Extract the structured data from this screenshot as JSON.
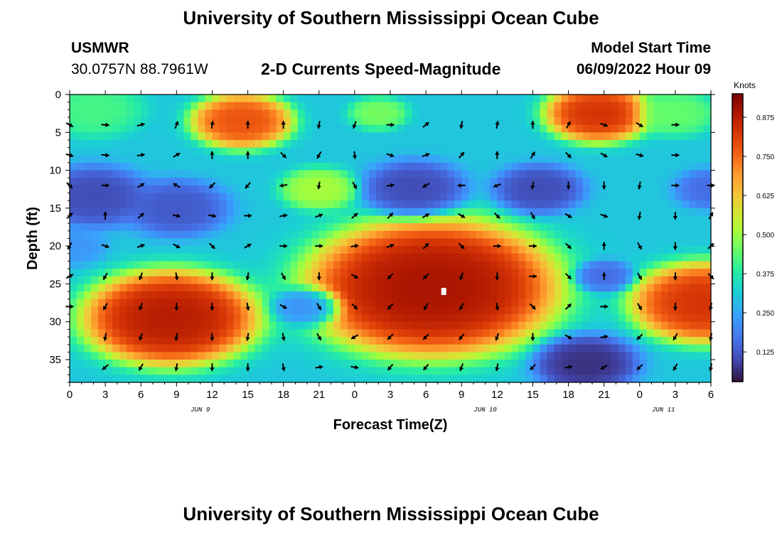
{
  "page": {
    "title_top": "University of Southern Mississippi Ocean Cube",
    "title_bottom": "University of Southern Mississippi Ocean Cube",
    "station": "USMWR",
    "coordinates": "30.0757N  88.7961W",
    "subtitle": "2-D Currents Speed-Magnitude",
    "model_start_label": "Model Start Time",
    "model_start_value": "06/09/2022 Hour 09"
  },
  "colors": {
    "background": "#ffffff",
    "axis": "#000000",
    "arrow": "#000000"
  },
  "chart_data": {
    "type": "heatmap",
    "title": "2-D Currents Speed-Magnitude",
    "xlabel": "Forecast Time(Z)",
    "ylabel": "Depth (ft)",
    "x_ticks": [
      "0",
      "3",
      "6",
      "9",
      "12",
      "15",
      "18",
      "21",
      "0",
      "3",
      "6",
      "9",
      "12",
      "15",
      "18",
      "21",
      "0",
      "3",
      "6"
    ],
    "x_range_hours": [
      0,
      54
    ],
    "date_labels": [
      {
        "label": "JUN 9",
        "hour": 11
      },
      {
        "label": "JUN 10",
        "hour": 35
      },
      {
        "label": "JUN 11",
        "hour": 50
      }
    ],
    "y_ticks": [
      0,
      5,
      10,
      15,
      20,
      25,
      30,
      35
    ],
    "ylim": [
      0,
      38
    ],
    "y_inverted": true,
    "colorbar": {
      "label": "Knots",
      "ticks": [
        "0.875",
        "0.750",
        "0.625",
        "0.500",
        "0.375",
        "0.250",
        "0.125"
      ],
      "range": [
        0.03,
        0.95
      ],
      "colormap": "turbo"
    },
    "marker": {
      "hour": 31.5,
      "depth": 26
    },
    "centers": [
      {
        "h": 14.5,
        "d": 3.5,
        "s": 0.8,
        "r": 2.2
      },
      {
        "h": 44.5,
        "d": 2.5,
        "s": 0.85,
        "r": 2.3
      },
      {
        "h": 8.5,
        "d": 29.5,
        "s": 0.9,
        "r": 3.8
      },
      {
        "h": 30.5,
        "d": 25.5,
        "s": 0.92,
        "r": 5.5
      },
      {
        "h": 53.5,
        "d": 27.5,
        "s": 0.85,
        "r": 3.2
      },
      {
        "h": 21.0,
        "d": 12.5,
        "s": 0.52,
        "r": 1.7
      },
      {
        "h": 26.0,
        "d": 2.5,
        "s": 0.47,
        "r": 1.3
      },
      {
        "h": 51.0,
        "d": 2.5,
        "s": 0.45,
        "r": 1.8
      },
      {
        "h": 2.0,
        "d": 2.0,
        "s": 0.42,
        "r": 2.2
      },
      {
        "h": 2.0,
        "d": 13.5,
        "s": 0.1,
        "r": 2.5
      },
      {
        "h": 9.0,
        "d": 15.0,
        "s": 0.12,
        "r": 2.3
      },
      {
        "h": 29.0,
        "d": 12.5,
        "s": 0.1,
        "r": 2.3
      },
      {
        "h": 39.5,
        "d": 12.5,
        "s": 0.1,
        "r": 2.0
      },
      {
        "h": 43.5,
        "d": 35.5,
        "s": 0.06,
        "r": 2.3
      },
      {
        "h": 54.0,
        "d": 12.5,
        "s": 0.15,
        "r": 1.6
      },
      {
        "h": 45.0,
        "d": 24.0,
        "s": 0.15,
        "r": 1.3
      },
      {
        "h": 20.0,
        "d": 28.0,
        "s": 0.2,
        "r": 1.6
      },
      {
        "h": 0.0,
        "d": 20.0,
        "s": 0.22,
        "r": 1.6
      }
    ],
    "vectors": [
      {
        "h": 0,
        "d": 4,
        "a": -30
      },
      {
        "h": 3,
        "d": 4,
        "a": -5
      },
      {
        "h": 6,
        "d": 4,
        "a": 15
      },
      {
        "h": 9,
        "d": 4,
        "a": 70
      },
      {
        "h": 12,
        "d": 4,
        "a": 80
      },
      {
        "h": 15,
        "d": 4,
        "a": 90
      },
      {
        "h": 18,
        "d": 4,
        "a": 90
      },
      {
        "h": 21,
        "d": 4,
        "a": -100
      },
      {
        "h": 24,
        "d": 4,
        "a": -110
      },
      {
        "h": 27,
        "d": 4,
        "a": 0
      },
      {
        "h": 30,
        "d": 4,
        "a": 40
      },
      {
        "h": 33,
        "d": 4,
        "a": -100
      },
      {
        "h": 36,
        "d": 4,
        "a": 80
      },
      {
        "h": 39,
        "d": 4,
        "a": 90
      },
      {
        "h": 42,
        "d": 4,
        "a": 60
      },
      {
        "h": 45,
        "d": 4,
        "a": -20
      },
      {
        "h": 48,
        "d": 4,
        "a": -30
      },
      {
        "h": 51,
        "d": 4,
        "a": 0
      },
      {
        "h": 0,
        "d": 8,
        "a": -15
      },
      {
        "h": 3,
        "d": 8,
        "a": -5
      },
      {
        "h": 6,
        "d": 8,
        "a": 10
      },
      {
        "h": 9,
        "d": 8,
        "a": 30
      },
      {
        "h": 12,
        "d": 8,
        "a": 90
      },
      {
        "h": 15,
        "d": 8,
        "a": 90
      },
      {
        "h": 18,
        "d": 8,
        "a": -45
      },
      {
        "h": 21,
        "d": 8,
        "a": -120
      },
      {
        "h": 24,
        "d": 8,
        "a": -85
      },
      {
        "h": 27,
        "d": 8,
        "a": -20
      },
      {
        "h": 30,
        "d": 8,
        "a": 20
      },
      {
        "h": 33,
        "d": 8,
        "a": 50
      },
      {
        "h": 36,
        "d": 8,
        "a": 90
      },
      {
        "h": 39,
        "d": 8,
        "a": 60
      },
      {
        "h": 42,
        "d": 8,
        "a": -45
      },
      {
        "h": 45,
        "d": 8,
        "a": -30
      },
      {
        "h": 48,
        "d": 8,
        "a": -15
      },
      {
        "h": 51,
        "d": 8,
        "a": 0
      },
      {
        "h": 0,
        "d": 12,
        "a": -45
      },
      {
        "h": 3,
        "d": 12,
        "a": 0
      },
      {
        "h": 6,
        "d": 12,
        "a": 30
      },
      {
        "h": 9,
        "d": 12,
        "a": 150
      },
      {
        "h": 12,
        "d": 12,
        "a": -135
      },
      {
        "h": 15,
        "d": 12,
        "a": -130
      },
      {
        "h": 18,
        "d": 12,
        "a": -170
      },
      {
        "h": 21,
        "d": 12,
        "a": -100
      },
      {
        "h": 24,
        "d": 12,
        "a": -60
      },
      {
        "h": 27,
        "d": 12,
        "a": 10
      },
      {
        "h": 30,
        "d": 12,
        "a": -150
      },
      {
        "h": 33,
        "d": 12,
        "a": 180
      },
      {
        "h": 36,
        "d": 12,
        "a": -160
      },
      {
        "h": 39,
        "d": 12,
        "a": -100
      },
      {
        "h": 42,
        "d": 12,
        "a": -90
      },
      {
        "h": 45,
        "d": 12,
        "a": -90
      },
      {
        "h": 48,
        "d": 12,
        "a": -100
      },
      {
        "h": 51,
        "d": 12,
        "a": 0
      },
      {
        "h": 54,
        "d": 12,
        "a": 0
      },
      {
        "h": 0,
        "d": 16,
        "a": 45
      },
      {
        "h": 3,
        "d": 16,
        "a": 90
      },
      {
        "h": 6,
        "d": 16,
        "a": 40
      },
      {
        "h": 9,
        "d": 16,
        "a": -10
      },
      {
        "h": 12,
        "d": 16,
        "a": -10
      },
      {
        "h": 15,
        "d": 16,
        "a": 0
      },
      {
        "h": 18,
        "d": 16,
        "a": 10
      },
      {
        "h": 21,
        "d": 16,
        "a": 20
      },
      {
        "h": 24,
        "d": 16,
        "a": 40
      },
      {
        "h": 27,
        "d": 16,
        "a": 45
      },
      {
        "h": 30,
        "d": 16,
        "a": 30
      },
      {
        "h": 33,
        "d": 16,
        "a": -30
      },
      {
        "h": 36,
        "d": 16,
        "a": -45
      },
      {
        "h": 39,
        "d": 16,
        "a": -60
      },
      {
        "h": 42,
        "d": 16,
        "a": -30
      },
      {
        "h": 45,
        "d": 16,
        "a": -20
      },
      {
        "h": 48,
        "d": 16,
        "a": -100
      },
      {
        "h": 51,
        "d": 16,
        "a": -90
      },
      {
        "h": 54,
        "d": 16,
        "a": 60
      },
      {
        "h": 0,
        "d": 20,
        "a": -120
      },
      {
        "h": 3,
        "d": 20,
        "a": -20
      },
      {
        "h": 6,
        "d": 20,
        "a": 20
      },
      {
        "h": 9,
        "d": 20,
        "a": -30
      },
      {
        "h": 12,
        "d": 20,
        "a": -45
      },
      {
        "h": 15,
        "d": 20,
        "a": 30
      },
      {
        "h": 18,
        "d": 20,
        "a": 0
      },
      {
        "h": 21,
        "d": 20,
        "a": 0
      },
      {
        "h": 24,
        "d": 20,
        "a": 10
      },
      {
        "h": 27,
        "d": 20,
        "a": 20
      },
      {
        "h": 30,
        "d": 20,
        "a": 45
      },
      {
        "h": 33,
        "d": 20,
        "a": -45
      },
      {
        "h": 36,
        "d": 20,
        "a": 0
      },
      {
        "h": 39,
        "d": 20,
        "a": 0
      },
      {
        "h": 42,
        "d": 20,
        "a": -45
      },
      {
        "h": 45,
        "d": 20,
        "a": 90
      },
      {
        "h": 48,
        "d": 20,
        "a": -60
      },
      {
        "h": 51,
        "d": 20,
        "a": -90
      },
      {
        "h": 54,
        "d": 20,
        "a": 45
      },
      {
        "h": 0,
        "d": 24,
        "a": 30
      },
      {
        "h": 3,
        "d": 24,
        "a": -120
      },
      {
        "h": 6,
        "d": 24,
        "a": -110
      },
      {
        "h": 9,
        "d": 24,
        "a": -80
      },
      {
        "h": 12,
        "d": 24,
        "a": -90
      },
      {
        "h": 15,
        "d": 24,
        "a": -100
      },
      {
        "h": 18,
        "d": 24,
        "a": -60
      },
      {
        "h": 21,
        "d": 24,
        "a": -90
      },
      {
        "h": 24,
        "d": 24,
        "a": -30
      },
      {
        "h": 27,
        "d": 24,
        "a": -135
      },
      {
        "h": 30,
        "d": 24,
        "a": -135
      },
      {
        "h": 33,
        "d": 24,
        "a": -110
      },
      {
        "h": 36,
        "d": 24,
        "a": -90
      },
      {
        "h": 39,
        "d": 24,
        "a": 0
      },
      {
        "h": 42,
        "d": 24,
        "a": -45
      },
      {
        "h": 45,
        "d": 24,
        "a": 90
      },
      {
        "h": 48,
        "d": 24,
        "a": -60
      },
      {
        "h": 51,
        "d": 24,
        "a": -90
      },
      {
        "h": 54,
        "d": 24,
        "a": -45
      },
      {
        "h": 0,
        "d": 28,
        "a": 0
      },
      {
        "h": 3,
        "d": 28,
        "a": -120
      },
      {
        "h": 6,
        "d": 28,
        "a": -110
      },
      {
        "h": 9,
        "d": 28,
        "a": -90
      },
      {
        "h": 12,
        "d": 28,
        "a": -90
      },
      {
        "h": 15,
        "d": 28,
        "a": -80
      },
      {
        "h": 18,
        "d": 28,
        "a": -30
      },
      {
        "h": 21,
        "d": 28,
        "a": -60
      },
      {
        "h": 24,
        "d": 28,
        "a": -45
      },
      {
        "h": 27,
        "d": 28,
        "a": -135
      },
      {
        "h": 30,
        "d": 28,
        "a": -120
      },
      {
        "h": 33,
        "d": 28,
        "a": -120
      },
      {
        "h": 36,
        "d": 28,
        "a": -80
      },
      {
        "h": 39,
        "d": 28,
        "a": -45
      },
      {
        "h": 42,
        "d": 28,
        "a": 45
      },
      {
        "h": 45,
        "d": 28,
        "a": 0
      },
      {
        "h": 48,
        "d": 28,
        "a": -60
      },
      {
        "h": 51,
        "d": 28,
        "a": -90
      },
      {
        "h": 54,
        "d": 28,
        "a": -100
      },
      {
        "h": 3,
        "d": 32,
        "a": -100
      },
      {
        "h": 6,
        "d": 32,
        "a": -110
      },
      {
        "h": 9,
        "d": 32,
        "a": -100
      },
      {
        "h": 12,
        "d": 32,
        "a": -90
      },
      {
        "h": 15,
        "d": 32,
        "a": -100
      },
      {
        "h": 18,
        "d": 32,
        "a": -80
      },
      {
        "h": 21,
        "d": 32,
        "a": -60
      },
      {
        "h": 24,
        "d": 32,
        "a": -150
      },
      {
        "h": 27,
        "d": 32,
        "a": -135
      },
      {
        "h": 30,
        "d": 32,
        "a": -135
      },
      {
        "h": 33,
        "d": 32,
        "a": -130
      },
      {
        "h": 36,
        "d": 32,
        "a": -110
      },
      {
        "h": 39,
        "d": 32,
        "a": -90
      },
      {
        "h": 42,
        "d": 32,
        "a": -30
      },
      {
        "h": 45,
        "d": 32,
        "a": 10
      },
      {
        "h": 48,
        "d": 32,
        "a": -135
      },
      {
        "h": 51,
        "d": 32,
        "a": -120
      },
      {
        "h": 54,
        "d": 32,
        "a": -100
      },
      {
        "h": 3,
        "d": 36,
        "a": -140
      },
      {
        "h": 6,
        "d": 36,
        "a": -120
      },
      {
        "h": 9,
        "d": 36,
        "a": -100
      },
      {
        "h": 12,
        "d": 36,
        "a": -90
      },
      {
        "h": 15,
        "d": 36,
        "a": -90
      },
      {
        "h": 18,
        "d": 36,
        "a": -80
      },
      {
        "h": 21,
        "d": 36,
        "a": 10
      },
      {
        "h": 24,
        "d": 36,
        "a": -10
      },
      {
        "h": 27,
        "d": 36,
        "a": -130
      },
      {
        "h": 30,
        "d": 36,
        "a": -130
      },
      {
        "h": 33,
        "d": 36,
        "a": -110
      },
      {
        "h": 36,
        "d": 36,
        "a": -100
      },
      {
        "h": 39,
        "d": 36,
        "a": -135
      },
      {
        "h": 42,
        "d": 36,
        "a": 10
      },
      {
        "h": 45,
        "d": 36,
        "a": -150
      },
      {
        "h": 48,
        "d": 36,
        "a": -135
      },
      {
        "h": 51,
        "d": 36,
        "a": -120
      },
      {
        "h": 54,
        "d": 36,
        "a": -100
      }
    ]
  }
}
